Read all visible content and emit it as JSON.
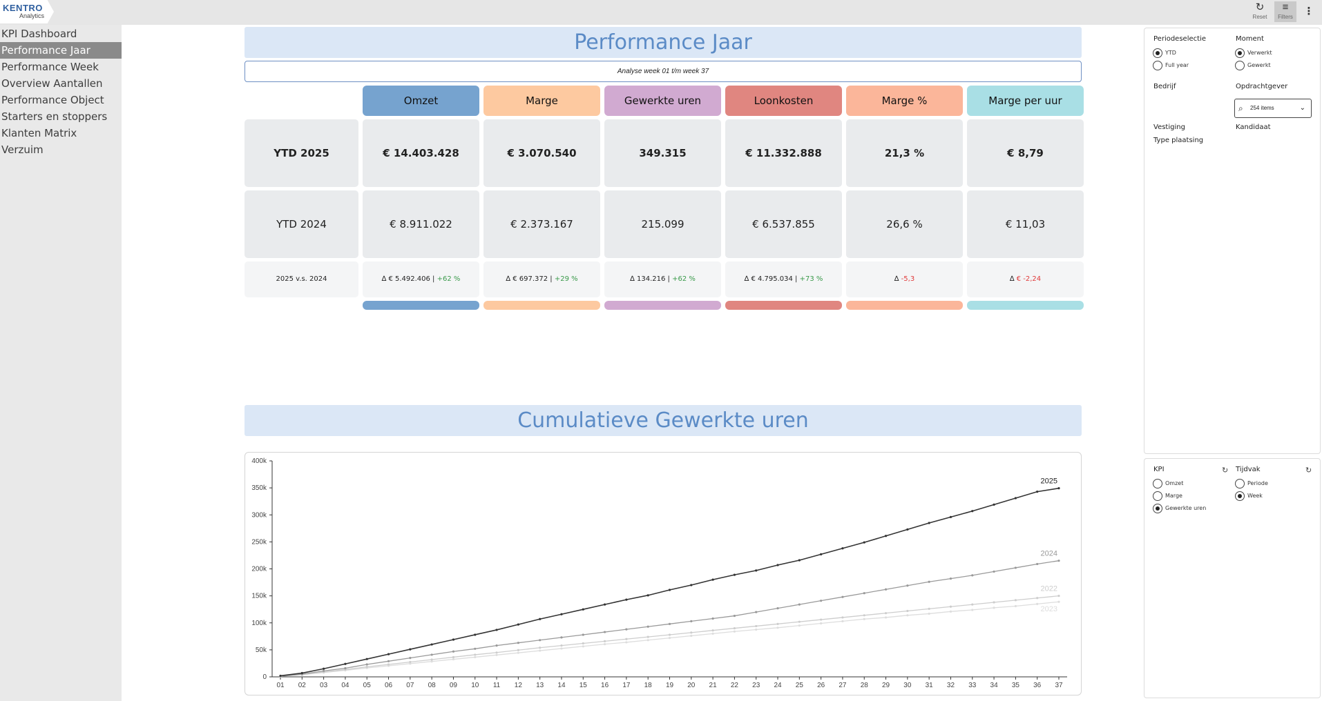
{
  "app": {
    "logo_main": "KENTRO",
    "logo_sub": "Analytics"
  },
  "toolbar": {
    "reset_label": "Reset",
    "filters_label": "Filters"
  },
  "nav": [
    "KPI Dashboard",
    "Performance Jaar",
    "Performance Week",
    "Overview Aantallen",
    "Performance Object",
    "Starters en stoppers",
    "Klanten Matrix",
    "Verzuim"
  ],
  "nav_active": 1,
  "page": {
    "title": "Performance Jaar",
    "subtitle": "Analyse week 01 t/m week 37",
    "section2_title": "Cumulatieve Gewerkte uren"
  },
  "kpis": [
    {
      "label": "Omzet",
      "color": "#76a3cf",
      "ytd2025": "€ 14.403.428",
      "ytd2024": "€ 8.911.022",
      "delta": "∆ € 5.492.406 | ",
      "change": "+62 %",
      "trend": "up"
    },
    {
      "label": "Marge",
      "color": "#fdc9a0",
      "ytd2025": "€ 3.070.540",
      "ytd2024": "€ 2.373.167",
      "delta": "∆ € 697.372 | ",
      "change": "+29 %",
      "trend": "up"
    },
    {
      "label": "Gewerkte uren",
      "color": "#d1aad1",
      "ytd2025": "349.315",
      "ytd2024": "215.099",
      "delta": "∆ 134.216 | ",
      "change": "+62 %",
      "trend": "up"
    },
    {
      "label": "Loonkosten",
      "color": "#e08680",
      "ytd2025": "€ 11.332.888",
      "ytd2024": "€ 6.537.855",
      "delta": "∆ € 4.795.034 | ",
      "change": "+73 %",
      "trend": "up"
    },
    {
      "label": "Marge %",
      "color": "#fbb69a",
      "ytd2025": "21,3 %",
      "ytd2024": "26,6 %",
      "delta": "∆ ",
      "change": "-5,3",
      "trend": "down"
    },
    {
      "label": "Marge per uur",
      "color": "#a9dfe5",
      "ytd2025": "€ 8,79",
      "ytd2024": "€ 11,03",
      "delta": "∆ ",
      "change": "€ -2,24",
      "trend": "down"
    }
  ],
  "row_labels": {
    "row1": "YTD 2025",
    "row2": "YTD 2024",
    "row3": "2025 v.s. 2024"
  },
  "filters": {
    "periodeselectie_label": "Periodeselectie",
    "periode_options": [
      "YTD",
      "Full year"
    ],
    "periode_selected": 0,
    "moment_label": "Moment",
    "moment_options": [
      "Verwerkt",
      "Gewerkt"
    ],
    "moment_selected": 0,
    "bedrijf_label": "Bedrijf",
    "opdrachtgever_label": "Opdrachtgever",
    "opdrachtgever_value": "254 items",
    "vestiging_label": "Vestiging",
    "kandidaat_label": "Kandidaat",
    "type_plaatsing_label": "Type plaatsing"
  },
  "chart_controls": {
    "kpi_label": "KPI",
    "kpi_options": [
      "Omzet",
      "Marge",
      "Gewerkte uren"
    ],
    "kpi_selected": 2,
    "tijdvak_label": "Tijdvak",
    "tijdvak_options": [
      "Periode",
      "Week"
    ],
    "tijdvak_selected": 1
  },
  "colors": {
    "accent_blue": "#5b8bc6",
    "title_band": "#dbe7f6",
    "green": "#3a9a4a",
    "red": "#e03a3a"
  },
  "chart_data": {
    "type": "line",
    "x": [
      "01",
      "02",
      "03",
      "04",
      "05",
      "06",
      "07",
      "08",
      "09",
      "10",
      "11",
      "12",
      "13",
      "14",
      "15",
      "16",
      "17",
      "18",
      "19",
      "20",
      "21",
      "22",
      "23",
      "24",
      "25",
      "26",
      "27",
      "28",
      "29",
      "30",
      "31",
      "32",
      "33",
      "34",
      "35",
      "36",
      "37"
    ],
    "ylim": [
      0,
      400000
    ],
    "yticks": [
      0,
      50000,
      100000,
      150000,
      200000,
      250000,
      300000,
      350000,
      400000
    ],
    "ytick_labels": [
      "0",
      "50k",
      "100k",
      "150k",
      "200k",
      "250k",
      "300k",
      "350k",
      "400k"
    ],
    "grid": false,
    "series": [
      {
        "name": "2025",
        "color": "#333333",
        "values": [
          2000,
          7000,
          15000,
          24000,
          33000,
          42000,
          51000,
          60000,
          69000,
          78000,
          87000,
          97000,
          107000,
          116000,
          125000,
          134000,
          143000,
          151000,
          161000,
          170000,
          180000,
          189000,
          197000,
          207000,
          216000,
          227000,
          238000,
          249000,
          261000,
          273000,
          285000,
          296000,
          307000,
          319000,
          331000,
          343000,
          349315
        ]
      },
      {
        "name": "2024",
        "color": "#999999",
        "values": [
          1500,
          5000,
          11000,
          16000,
          23000,
          29000,
          35000,
          41000,
          47000,
          52000,
          58000,
          63000,
          68000,
          73000,
          78000,
          83000,
          88000,
          93000,
          98000,
          103000,
          108000,
          113000,
          120000,
          127000,
          134000,
          141000,
          148000,
          155000,
          162000,
          169000,
          176000,
          182000,
          188000,
          195000,
          202000,
          209000,
          215099
        ]
      },
      {
        "name": "2022",
        "color": "#cdcdcd",
        "values": [
          1200,
          4200,
          9000,
          13500,
          18500,
          23000,
          27500,
          32000,
          36500,
          41000,
          45000,
          49500,
          54000,
          58000,
          62000,
          66000,
          70000,
          74000,
          78000,
          82000,
          86000,
          90000,
          94000,
          98000,
          102000,
          106000,
          110000,
          114000,
          118000,
          122000,
          126000,
          130000,
          134000,
          138000,
          142000,
          146000,
          150000
        ]
      },
      {
        "name": "2023",
        "color": "#dddddd",
        "values": [
          1000,
          3800,
          8000,
          12000,
          16500,
          20500,
          24500,
          28500,
          32500,
          36500,
          40500,
          44500,
          48500,
          52500,
          56500,
          60500,
          64000,
          68000,
          72000,
          76000,
          80000,
          84000,
          87500,
          91000,
          95000,
          99000,
          103000,
          107000,
          110000,
          114000,
          117000,
          121000,
          124000,
          128000,
          131000,
          135000,
          139000
        ]
      }
    ]
  }
}
